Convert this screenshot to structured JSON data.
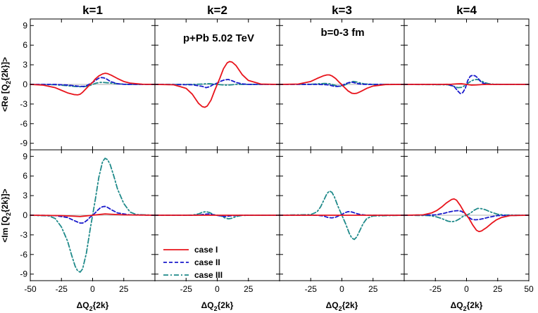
{
  "chart_data": {
    "type": "line",
    "layout": "2 rows x 4 columns of panels, shared axes",
    "column_titles": [
      "k=1",
      "k=2",
      "k=3",
      "k=4"
    ],
    "annotations": [
      "p+Pb 5.02 TeV",
      "b=0-3 fm"
    ],
    "xlabel": {
      "main": "ΔQ",
      "sub": "2",
      "tail": "{2k}"
    },
    "row_ylabels": [
      {
        "main": "<Re [Q",
        "sub": "2",
        "tail": "{2k}]>"
      },
      {
        "main": "<Im [Q",
        "sub": "2",
        "tail": "{2k}]>"
      }
    ],
    "xlim": [
      -50,
      50
    ],
    "ylim": [
      -10,
      10
    ],
    "x_ticks": [
      -50,
      -25,
      0,
      25,
      50
    ],
    "y_ticks": [
      -9,
      -6,
      -3,
      0,
      3,
      6,
      9
    ],
    "legend": {
      "placement": "lower-left of row 2, column 2",
      "entries": [
        "case I",
        "case II",
        "case III"
      ]
    },
    "series_styles": [
      {
        "name": "case I",
        "color": "#e8141c",
        "dash": "solid"
      },
      {
        "name": "case II",
        "color": "#1a1acc",
        "dash": "dashed"
      },
      {
        "name": "case III",
        "color": "#1f8a8a",
        "dash": "dashdot"
      }
    ],
    "panels": [
      {
        "row": 0,
        "col": 0,
        "series": [
          {
            "name": "case I",
            "x": [
              -50,
              -40,
              -30,
              -25,
              -20,
              -15,
              -12,
              -10,
              -8,
              -5,
              -2,
              0,
              2,
              5,
              8,
              10,
              12,
              15,
              20,
              25,
              30,
              40,
              50
            ],
            "y": [
              0,
              -0.1,
              -0.5,
              -0.9,
              -1.3,
              -1.55,
              -1.6,
              -1.5,
              -1.2,
              -0.6,
              0,
              0.3,
              0.8,
              1.3,
              1.6,
              1.7,
              1.65,
              1.4,
              0.9,
              0.45,
              0.2,
              0.03,
              0
            ]
          },
          {
            "name": "case II",
            "x": [
              -50,
              -30,
              -20,
              -15,
              -10,
              -7,
              -5,
              -3,
              0,
              3,
              5,
              7,
              9,
              11,
              13,
              15,
              20,
              25,
              30,
              50
            ],
            "y": [
              0,
              0,
              -0.1,
              -0.2,
              -0.3,
              -0.3,
              -0.2,
              0,
              0.3,
              0.7,
              0.95,
              1.05,
              1.0,
              0.85,
              0.6,
              0.4,
              0.1,
              0.02,
              0,
              0
            ]
          },
          {
            "name": "case III",
            "x": [
              -50,
              -30,
              -20,
              -15,
              -10,
              -7,
              -5,
              -2,
              0,
              3,
              6,
              9,
              12,
              15,
              20,
              25,
              30,
              50
            ],
            "y": [
              0,
              -0.05,
              -0.2,
              -0.3,
              -0.35,
              -0.35,
              -0.3,
              -0.15,
              0,
              0.2,
              0.3,
              0.3,
              0.25,
              0.2,
              0.1,
              0.03,
              0,
              0
            ]
          }
        ]
      },
      {
        "row": 0,
        "col": 1,
        "series": [
          {
            "name": "case I",
            "x": [
              -50,
              -35,
              -25,
              -20,
              -15,
              -12,
              -10,
              -8,
              -5,
              -2,
              0,
              2,
              5,
              8,
              10,
              12,
              15,
              20,
              25,
              35,
              50
            ],
            "y": [
              0,
              -0.05,
              -0.6,
              -1.5,
              -2.9,
              -3.4,
              -3.5,
              -3.3,
              -2.4,
              -0.9,
              0,
              0.9,
              2.4,
              3.3,
              3.5,
              3.4,
              2.9,
              1.5,
              0.6,
              0.05,
              0
            ]
          },
          {
            "name": "case II",
            "x": [
              -50,
              -20,
              -12,
              -9,
              -6,
              -3,
              0,
              3,
              6,
              9,
              12,
              15,
              20,
              25,
              50
            ],
            "y": [
              0,
              -0.05,
              -0.3,
              -0.5,
              -0.35,
              0,
              0.2,
              0.5,
              0.7,
              0.75,
              0.55,
              0.3,
              0.08,
              0,
              0
            ]
          },
          {
            "name": "case III",
            "x": [
              -50,
              -20,
              -12,
              -9,
              -6,
              -3,
              0,
              3,
              6,
              9,
              12,
              15,
              20,
              50
            ],
            "y": [
              0,
              0,
              0.05,
              0.1,
              0.1,
              0.05,
              0,
              -0.05,
              -0.1,
              -0.1,
              -0.05,
              0,
              0,
              0
            ]
          }
        ]
      },
      {
        "row": 0,
        "col": 2,
        "series": [
          {
            "name": "case I",
            "x": [
              -50,
              -35,
              -25,
              -20,
              -15,
              -12,
              -10,
              -8,
              -5,
              -2,
              0,
              2,
              5,
              8,
              10,
              12,
              15,
              20,
              25,
              35,
              50
            ],
            "y": [
              0,
              0.05,
              0.45,
              0.9,
              1.3,
              1.45,
              1.45,
              1.3,
              0.9,
              0.3,
              -0.05,
              -0.45,
              -1.0,
              -1.35,
              -1.4,
              -1.35,
              -1.1,
              -0.6,
              -0.25,
              -0.02,
              0
            ]
          },
          {
            "name": "case II",
            "x": [
              -50,
              -20,
              -12,
              -9,
              -6,
              -3,
              0,
              3,
              6,
              8,
              10,
              13,
              16,
              20,
              25,
              50
            ],
            "y": [
              0,
              0,
              -0.05,
              -0.15,
              -0.3,
              -0.3,
              -0.15,
              0.1,
              0.3,
              0.35,
              0.25,
              0.1,
              0.02,
              0,
              0,
              0
            ]
          },
          {
            "name": "case III",
            "x": [
              -50,
              -25,
              -18,
              -14,
              -10,
              -7,
              -4,
              -1,
              1,
              4,
              7,
              9,
              11,
              14,
              18,
              25,
              50
            ],
            "y": [
              0,
              0.02,
              0.1,
              0.15,
              0.1,
              -0.05,
              -0.25,
              -0.3,
              -0.2,
              0.05,
              0.3,
              0.45,
              0.4,
              0.25,
              0.08,
              0.01,
              0
            ]
          }
        ]
      },
      {
        "row": 0,
        "col": 3,
        "series": [
          {
            "name": "case I",
            "x": [
              -50,
              -20,
              -12,
              -8,
              -4,
              0,
              4,
              8,
              12,
              16,
              20,
              50
            ],
            "y": [
              0,
              0,
              0.03,
              0.08,
              0.1,
              0,
              -0.1,
              -0.08,
              -0.03,
              0,
              0,
              0
            ]
          },
          {
            "name": "case II",
            "x": [
              -50,
              -15,
              -10,
              -7,
              -5,
              -3,
              -1,
              0,
              1,
              3,
              5,
              7,
              9,
              11,
              13,
              16,
              20,
              50
            ],
            "y": [
              0,
              0,
              -0.3,
              -1.0,
              -1.4,
              -1.25,
              -0.6,
              0,
              0.6,
              1.25,
              1.4,
              1.3,
              1.0,
              0.5,
              0.2,
              0.05,
              0,
              0
            ]
          },
          {
            "name": "case III",
            "x": [
              -50,
              -15,
              -10,
              -7,
              -4,
              -2,
              0,
              2,
              4,
              6,
              8,
              10,
              12,
              15,
              18,
              22,
              50
            ],
            "y": [
              0,
              -0.05,
              -0.3,
              -0.5,
              -0.45,
              -0.25,
              0,
              0.3,
              0.55,
              0.7,
              0.75,
              0.7,
              0.5,
              0.25,
              0.1,
              0.02,
              0
            ]
          }
        ]
      },
      {
        "row": 1,
        "col": 0,
        "series": [
          {
            "name": "case I",
            "x": [
              -50,
              -25,
              -15,
              -10,
              -5,
              0,
              5,
              10,
              15,
              25,
              50
            ],
            "y": [
              0,
              -0.05,
              -0.15,
              -0.2,
              -0.1,
              0,
              0.1,
              0.2,
              0.15,
              0.05,
              0
            ]
          },
          {
            "name": "case II",
            "x": [
              -50,
              -30,
              -20,
              -15,
              -12,
              -10,
              -8,
              -6,
              -4,
              -2,
              0,
              2,
              4,
              6,
              8,
              10,
              12,
              15,
              20,
              30,
              50
            ],
            "y": [
              0,
              -0.05,
              -0.35,
              -0.8,
              -1.05,
              -1.2,
              -1.2,
              -1.0,
              -0.7,
              -0.3,
              0,
              0.35,
              0.75,
              1.1,
              1.3,
              1.35,
              1.2,
              0.85,
              0.35,
              0.05,
              0
            ]
          },
          {
            "name": "case III",
            "x": [
              -50,
              -35,
              -30,
              -25,
              -20,
              -17,
              -14,
              -12,
              -10,
              -8,
              -5,
              -2,
              0,
              2,
              5,
              8,
              10,
              12,
              14,
              17,
              20,
              25,
              30,
              35,
              50
            ],
            "y": [
              0,
              -0.1,
              -0.5,
              -1.8,
              -4.0,
              -6.0,
              -7.8,
              -8.5,
              -8.7,
              -8.2,
              -5.8,
              -2.2,
              0,
              2.2,
              5.8,
              8.2,
              8.7,
              8.5,
              7.8,
              6.0,
              4.0,
              1.8,
              0.5,
              0.1,
              0
            ]
          }
        ]
      },
      {
        "row": 1,
        "col": 1,
        "series": [
          {
            "name": "case I",
            "x": [
              -50,
              50
            ],
            "y": [
              0,
              0
            ]
          },
          {
            "name": "case II",
            "x": [
              -50,
              -20,
              -14,
              -10,
              -7,
              -4,
              -1,
              1,
              4,
              7,
              10,
              14,
              20,
              50
            ],
            "y": [
              0,
              0,
              0.05,
              0.15,
              0.2,
              0.1,
              0,
              -0.05,
              -0.15,
              -0.2,
              -0.1,
              -0.05,
              0,
              0
            ]
          },
          {
            "name": "case III",
            "x": [
              -50,
              -20,
              -15,
              -12,
              -9,
              -6,
              -3,
              0,
              3,
              6,
              9,
              12,
              15,
              20,
              50
            ],
            "y": [
              0,
              0.02,
              0.2,
              0.45,
              0.55,
              0.4,
              0.1,
              0,
              -0.1,
              -0.4,
              -0.55,
              -0.45,
              -0.2,
              -0.02,
              0
            ]
          }
        ]
      },
      {
        "row": 1,
        "col": 2,
        "series": [
          {
            "name": "case I",
            "x": [
              -50,
              50
            ],
            "y": [
              0,
              0
            ]
          },
          {
            "name": "case II",
            "x": [
              -50,
              -20,
              -15,
              -11,
              -8,
              -5,
              -2,
              0,
              2,
              5,
              8,
              11,
              15,
              20,
              50
            ],
            "y": [
              0,
              0,
              -0.1,
              -0.35,
              -0.4,
              -0.3,
              -0.05,
              0.1,
              0.35,
              0.55,
              0.5,
              0.3,
              0.1,
              0,
              0
            ]
          },
          {
            "name": "case III",
            "x": [
              -50,
              -25,
              -20,
              -17,
              -14,
              -12,
              -10,
              -8,
              -6,
              -3,
              0,
              3,
              6,
              8,
              10,
              12,
              14,
              17,
              20,
              25,
              50
            ],
            "y": [
              0,
              0.1,
              0.5,
              1.3,
              2.5,
              3.3,
              3.7,
              3.5,
              2.8,
              1.3,
              0,
              -1.3,
              -2.8,
              -3.5,
              -3.7,
              -3.3,
              -2.5,
              -1.3,
              -0.5,
              -0.1,
              0
            ]
          }
        ]
      },
      {
        "row": 1,
        "col": 3,
        "series": [
          {
            "name": "case I",
            "x": [
              -50,
              -35,
              -28,
              -24,
              -20,
              -16,
              -12,
              -10,
              -8,
              -5,
              -2,
              0,
              2,
              5,
              8,
              10,
              12,
              16,
              20,
              24,
              28,
              35,
              50
            ],
            "y": [
              0,
              0.05,
              0.35,
              0.7,
              1.25,
              1.9,
              2.4,
              2.5,
              2.3,
              1.5,
              0.5,
              0,
              -0.5,
              -1.5,
              -2.3,
              -2.5,
              -2.4,
              -1.9,
              -1.25,
              -0.7,
              -0.35,
              -0.05,
              0
            ]
          },
          {
            "name": "case II",
            "x": [
              -50,
              -25,
              -18,
              -14,
              -10,
              -7,
              -4,
              -1,
              1,
              4,
              7,
              10,
              14,
              18,
              25,
              50
            ],
            "y": [
              0,
              0.05,
              0.3,
              0.5,
              0.65,
              0.7,
              0.6,
              0.2,
              -0.2,
              -0.6,
              -0.7,
              -0.65,
              -0.5,
              -0.3,
              -0.05,
              0
            ]
          },
          {
            "name": "case III",
            "x": [
              -50,
              -30,
              -25,
              -20,
              -15,
              -12,
              -9,
              -6,
              -3,
              0,
              3,
              6,
              9,
              12,
              15,
              20,
              25,
              30,
              50
            ],
            "y": [
              0,
              -0.05,
              -0.2,
              -0.5,
              -0.9,
              -1.0,
              -0.9,
              -0.6,
              -0.2,
              0,
              0.3,
              0.75,
              1.05,
              1.0,
              0.85,
              0.45,
              0.15,
              0.03,
              0
            ]
          }
        ]
      }
    ]
  }
}
